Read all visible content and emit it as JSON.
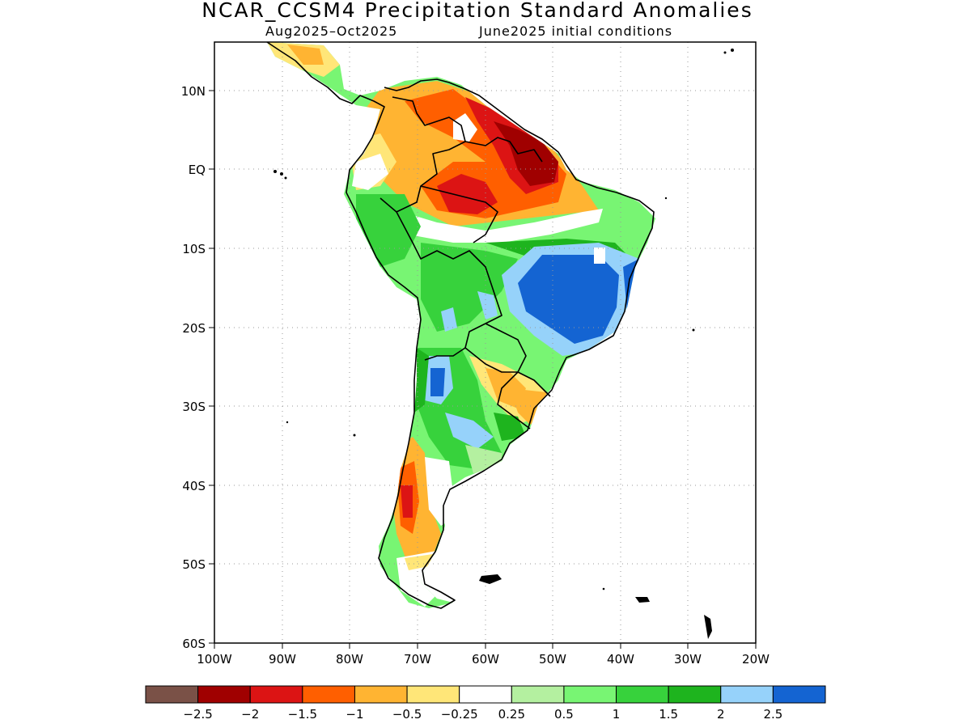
{
  "title": "NCAR_CCSM4 Precipitation Standard Anomalies",
  "subtitle_left": "Aug2025–Oct2025",
  "subtitle_right": "June2025 initial conditions",
  "map": {
    "lat_ticks": [
      "10N",
      "EQ",
      "10S",
      "20S",
      "30S",
      "40S",
      "50S",
      "60S"
    ],
    "lat_values": [
      10,
      0,
      -10,
      -20,
      -30,
      -40,
      -50,
      -60
    ],
    "lon_ticks": [
      "100W",
      "90W",
      "80W",
      "70W",
      "60W",
      "50W",
      "40W",
      "30W",
      "20W"
    ],
    "lon_values": [
      -100,
      -90,
      -80,
      -70,
      -60,
      -50,
      -40,
      -30,
      -20
    ],
    "extent": {
      "lon": [
        -100,
        -20
      ],
      "lat": [
        -60,
        16
      ]
    },
    "gridlines": true
  },
  "colorbar": {
    "colors": [
      "#7a5147",
      "#a00000",
      "#dc1414",
      "#ff5f00",
      "#ffb432",
      "#ffe678",
      "#ffffff",
      "#b4f0a0",
      "#78f573",
      "#37d23c",
      "#1eb41e",
      "#96d2fa",
      "#1464d2"
    ],
    "labels": [
      "−2.5",
      "−2",
      "−1.5",
      "−1",
      "−0.5",
      "−0.25",
      "0.25",
      "0.5",
      "1",
      "1.5",
      "2",
      "2.5"
    ]
  }
}
